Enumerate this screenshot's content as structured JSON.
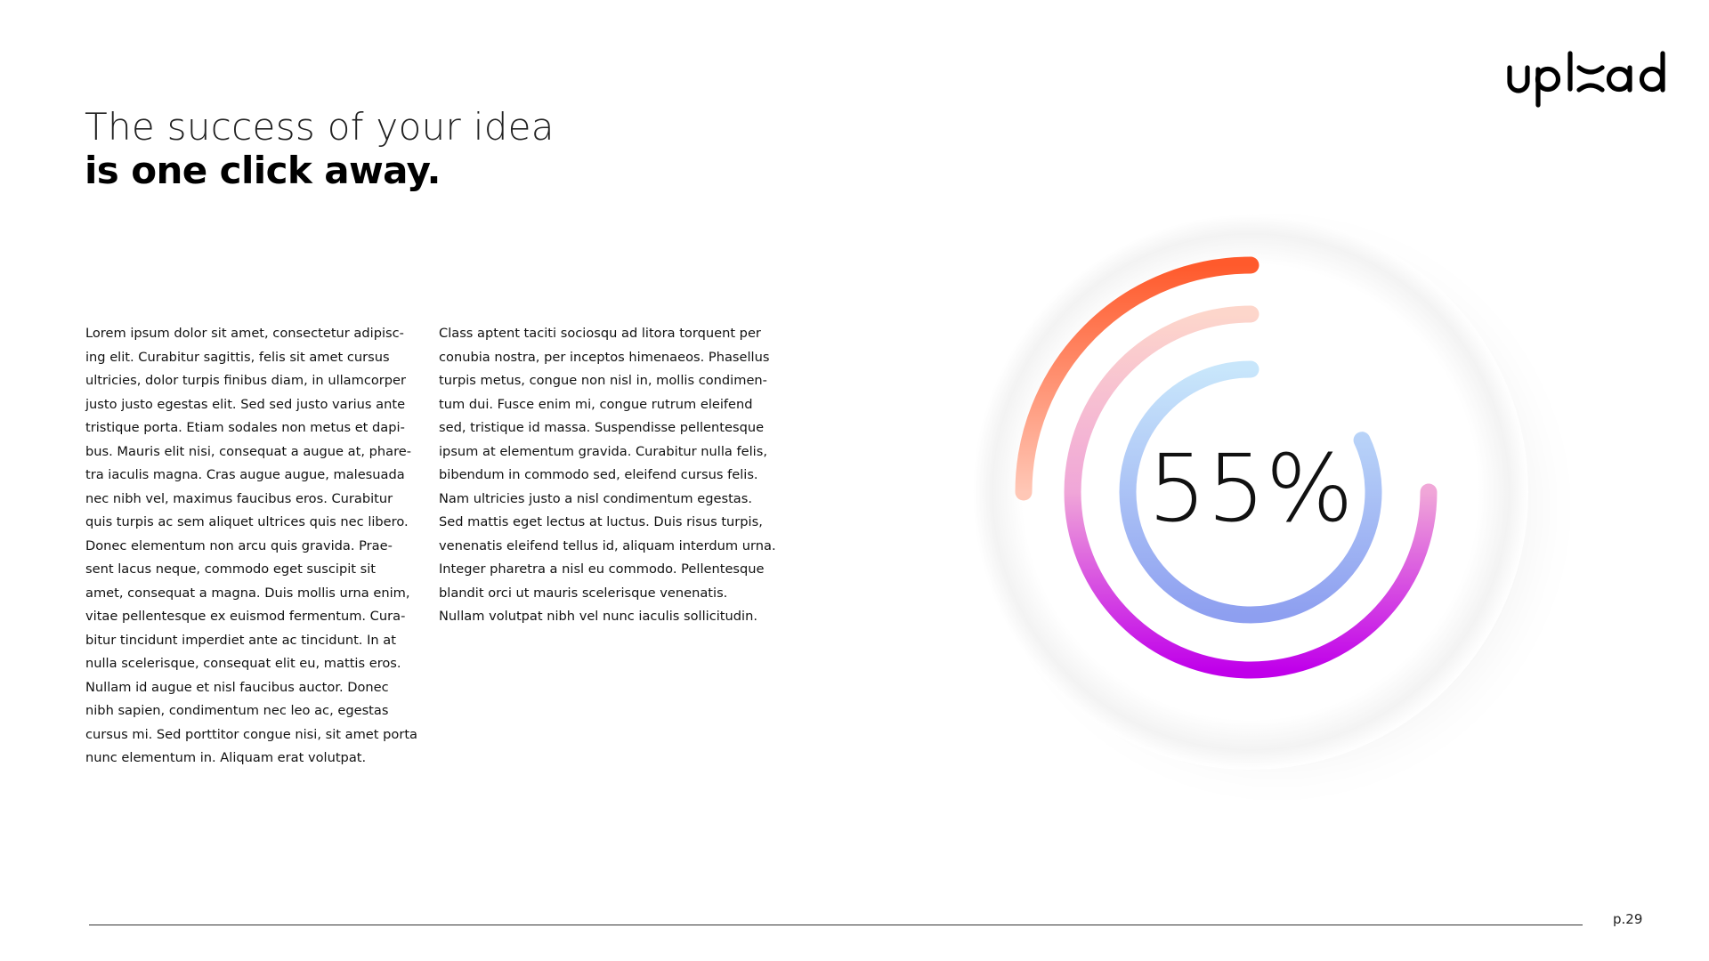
{
  "brand": {
    "logo_text": "upload"
  },
  "title": {
    "line1": "The success of your idea",
    "line2": "is one click away."
  },
  "body": {
    "column1": [
      "Lorem ipsum dolor sit amet, consectetur adipisc-",
      "ing elit. Curabitur sagittis, felis sit amet cursus",
      "ultricies, dolor turpis finibus diam, in ullamcorper",
      "justo justo egestas elit. Sed sed justo varius ante",
      "tristique porta. Etiam sodales non metus et dapi-",
      "bus. Mauris elit nisi, consequat a augue at, phare-",
      "tra iaculis magna. Cras augue augue, malesuada",
      "nec nibh vel, maximus faucibus eros. Curabitur",
      "quis turpis ac sem aliquet ultrices quis nec libero.",
      "Donec elementum non arcu quis gravida. Prae-",
      "sent lacus neque, commodo eget suscipit sit",
      "amet, consequat a magna. Duis mollis urna enim,",
      "vitae pellentesque ex euismod fermentum. Cura-",
      "bitur tincidunt imperdiet ante ac tincidunt. In at",
      "nulla scelerisque, consequat elit eu, mattis eros.",
      "Nullam id augue et nisl faucibus auctor. Donec",
      "nibh sapien, condimentum nec leo ac, egestas",
      "cursus mi. Sed porttitor congue nisi, sit amet porta",
      "nunc elementum in. Aliquam erat volutpat."
    ],
    "column2": [
      "Class aptent taciti sociosqu ad litora torquent per",
      "conubia nostra, per inceptos himenaeos. Phasellus",
      "turpis metus, congue non nisl in, mollis condimen-",
      "tum dui. Fusce enim mi, congue rutrum eleifend",
      "sed, tristique id massa. Suspendisse pellentesque",
      "ipsum at elementum gravida. Curabitur nulla felis,",
      "bibendum in commodo sed, eleifend cursus felis.",
      "Nam ultricies justo a nisl condimentum egestas.",
      "Sed mattis eget lectus at luctus. Duis risus turpis,",
      "venenatis eleifend tellus id, aliquam interdum urna.",
      "Integer pharetra a nisl eu commodo. Pellentesque",
      "blandit orci ut mauris scelerisque venenatis.",
      "Nullam volutpat nibh vel nunc iaculis sollicitudin."
    ]
  },
  "gauge": {
    "center_label": "55%",
    "rings": [
      {
        "name": "outer",
        "fraction": 0.25,
        "colors": [
          "#ff5a2c",
          "#ffc7b6"
        ]
      },
      {
        "name": "middle",
        "fraction": 0.75,
        "colors": [
          "#fdd6cb",
          "#c000ea"
        ]
      },
      {
        "name": "inner",
        "fraction": 0.7,
        "colors": [
          "#c8e6fb",
          "#8e9ff0"
        ]
      }
    ]
  },
  "footer": {
    "page": "p.29"
  }
}
